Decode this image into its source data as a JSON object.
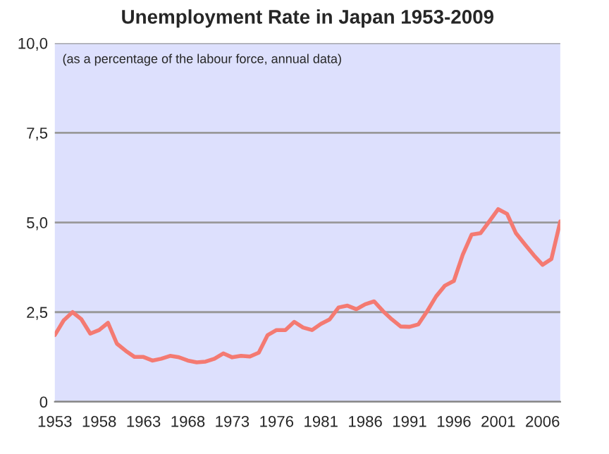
{
  "chart_data": {
    "type": "line",
    "title": "Unemployment Rate in Japan 1953-2009",
    "annotations": [
      "(as a percentage of the labour force, annual data)"
    ],
    "categories": [
      "1953",
      null,
      null,
      null,
      null,
      "1958",
      null,
      null,
      null,
      null,
      "1963",
      null,
      null,
      null,
      null,
      "1968",
      null,
      null,
      null,
      null,
      "1973",
      null,
      null,
      null,
      null,
      "1976",
      null,
      null,
      null,
      null,
      "1981",
      null,
      null,
      null,
      null,
      "1986",
      null,
      null,
      null,
      null,
      "1991",
      null,
      null,
      null,
      null,
      "1996",
      null,
      null,
      null,
      null,
      "2001",
      null,
      null,
      null,
      null,
      "2006",
      null,
      null
    ],
    "series": [
      {
        "color": "#f47a72",
        "values": [
          1.86,
          2.27,
          2.5,
          2.3,
          1.9,
          2.0,
          2.2,
          1.62,
          1.42,
          1.25,
          1.25,
          1.15,
          1.2,
          1.28,
          1.24,
          1.15,
          1.1,
          1.12,
          1.2,
          1.35,
          1.24,
          1.28,
          1.26,
          1.37,
          1.86,
          2.0,
          2.0,
          2.23,
          2.07,
          2.0,
          2.17,
          2.3,
          2.63,
          2.68,
          2.58,
          2.72,
          2.8,
          2.53,
          2.3,
          2.1,
          2.09,
          2.16,
          2.53,
          2.94,
          3.24,
          3.37,
          4.1,
          4.66,
          4.7,
          5.03,
          5.37,
          5.24,
          4.7,
          4.39,
          4.09,
          3.82,
          3.98,
          5.03
        ]
      }
    ],
    "ylim": [
      0,
      10
    ],
    "yticks": [
      0,
      {
        "value": 2.5,
        "label": "2,5"
      },
      {
        "value": 5,
        "label": "5,0"
      },
      {
        "value": 7.5,
        "label": "7,5"
      },
      {
        "value": 10,
        "label": "10,0"
      }
    ],
    "grid": "y",
    "legend": false,
    "marker": "none",
    "line_style": "solid"
  }
}
